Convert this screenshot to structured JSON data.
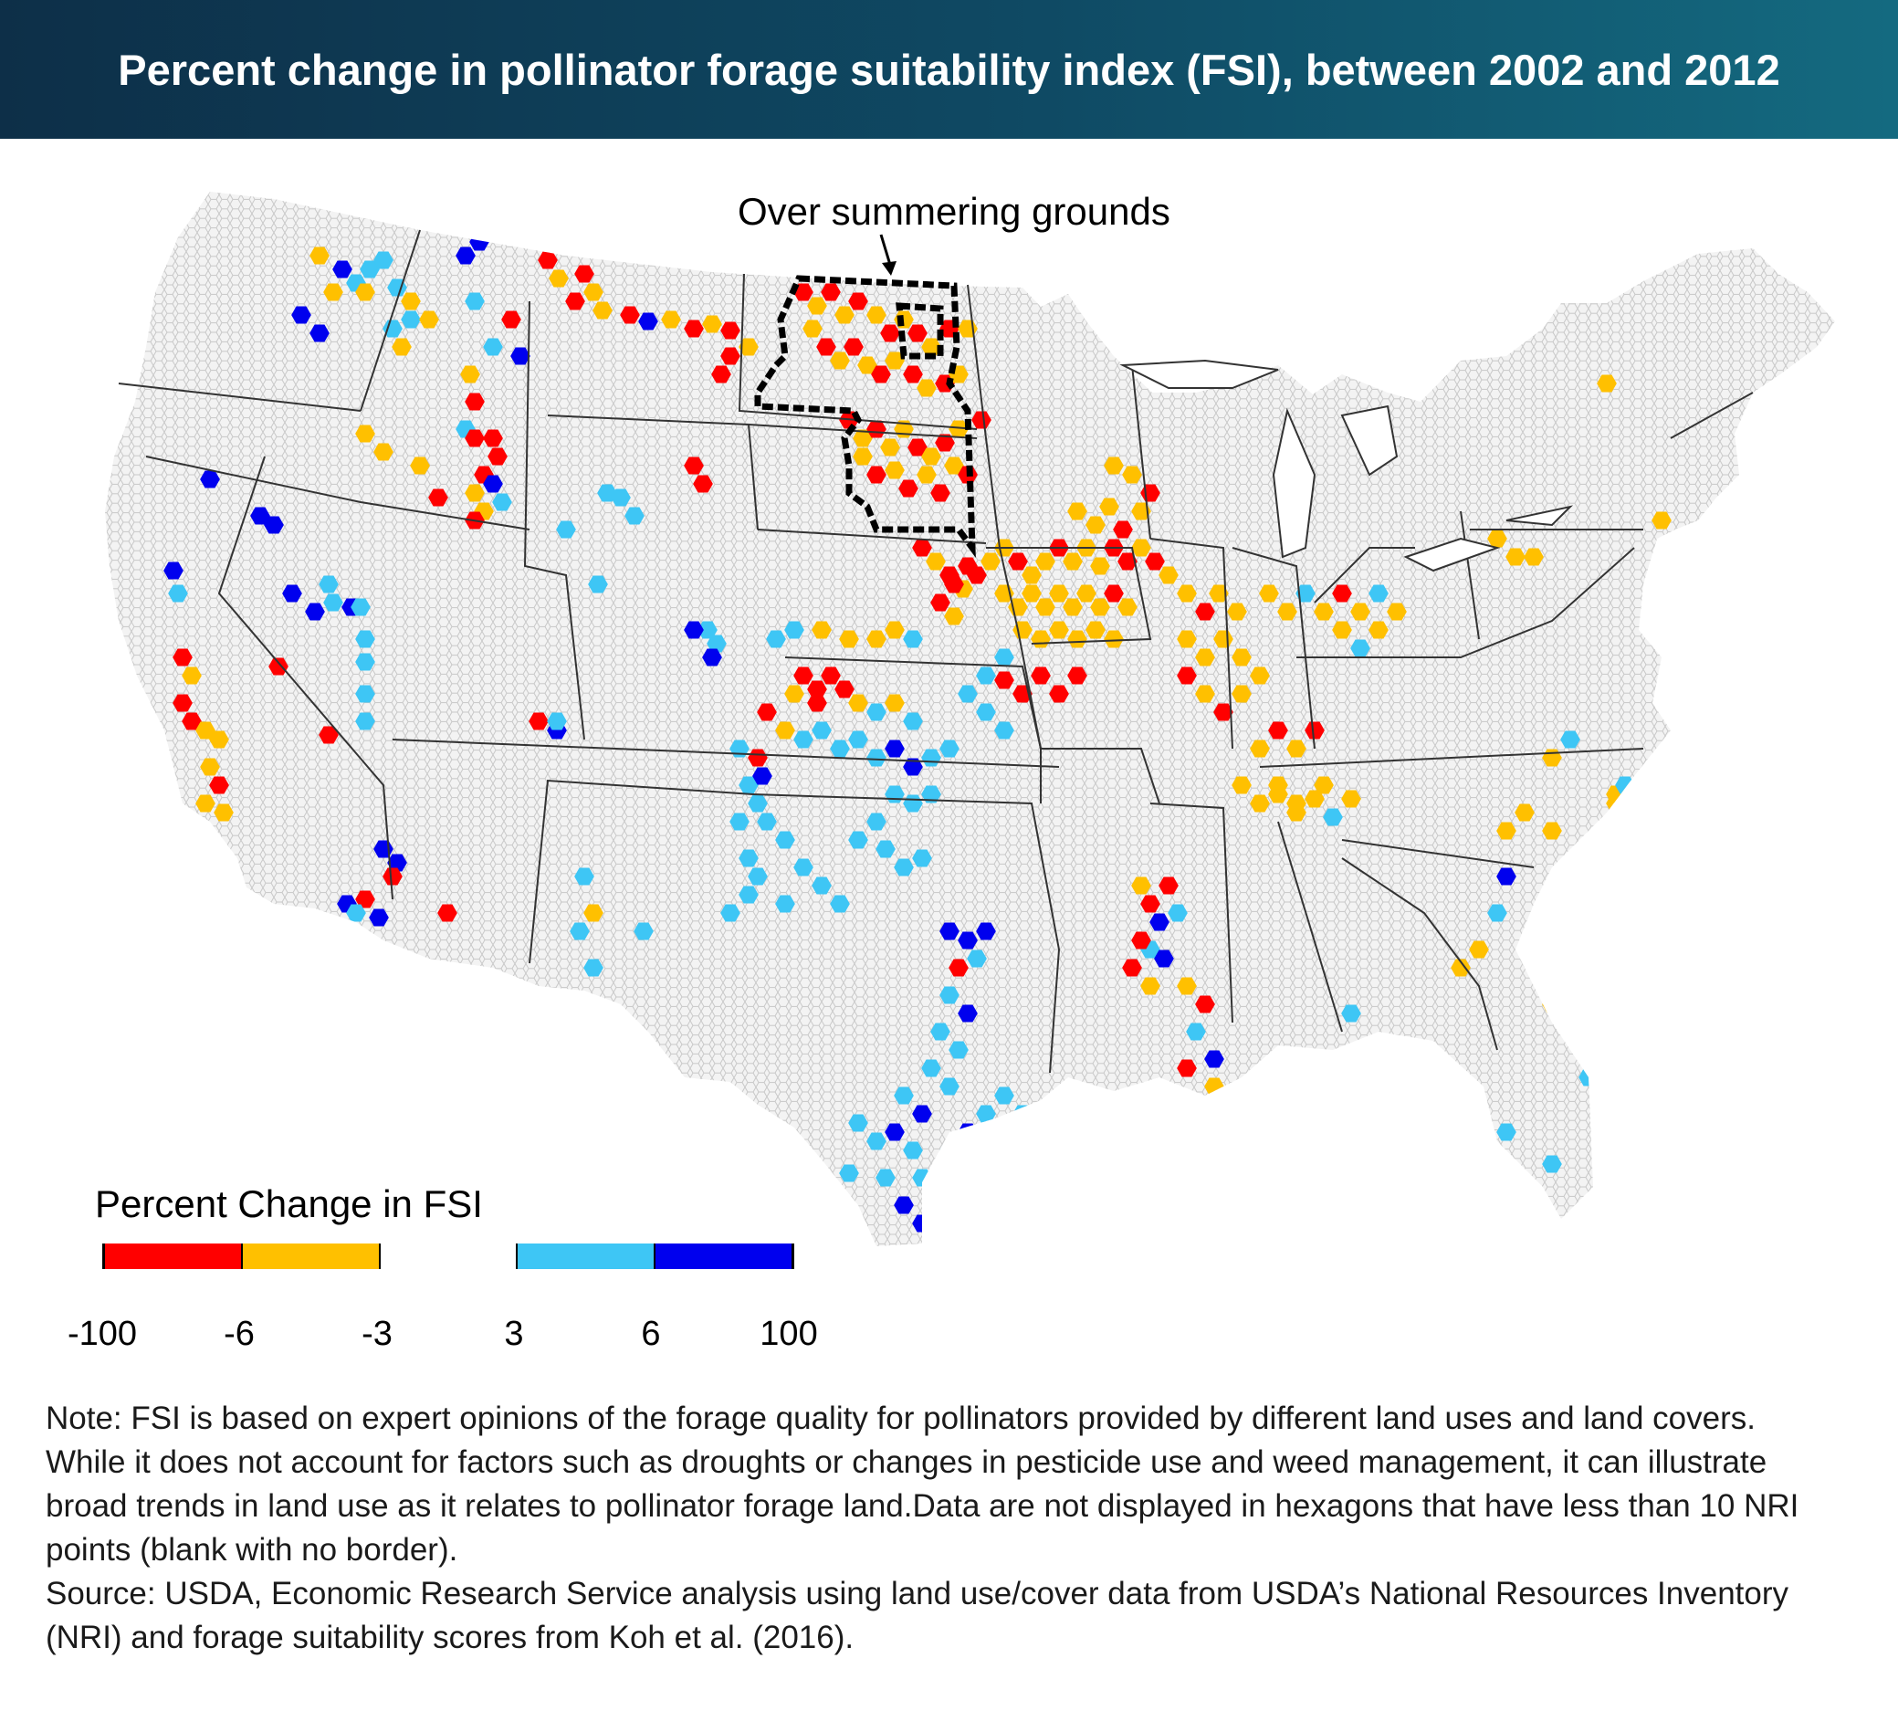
{
  "title": "Percent change in pollinator forage suitability index (FSI), between 2002 and 2012",
  "annotation": {
    "label": "Over summering grounds"
  },
  "legend": {
    "title": "Percent Change in FSI",
    "ticks": [
      "-100",
      "-6",
      "-3",
      "3",
      "6",
      "100"
    ],
    "bins": [
      {
        "range": "-100 to -6",
        "color": "#ff0000"
      },
      {
        "range": "-6 to -3",
        "color": "#ffc000"
      },
      {
        "range": "-3 to 3",
        "color": "#ffffff"
      },
      {
        "range": "3 to 6",
        "color": "#3ec6f5"
      },
      {
        "range": "6 to 100",
        "color": "#0000ee"
      }
    ]
  },
  "map": {
    "background_hex_color": "#f0f0f0",
    "hex_outline_color": "#c8c8c8",
    "state_border_color": "#333333",
    "region_outline": "Over summering grounds (dashed black outline, Dakotas area)"
  },
  "notes": {
    "note": "Note: FSI is based on expert opinions of the forage quality for pollinators provided by different land uses and land covers. While it does not account for factors such as droughts or changes in pesticide use and weed management, it can illustrate broad trends in land use as it relates to pollinator forage land.Data are not displayed in hexagons that have less than 10 NRI points (blank with no border).",
    "source": "Source: USDA, Economic Research Service analysis using land use/cover data from USDA’s National Resources Inventory (NRI) and forage suitability scores from Koh et al. (2016)."
  }
}
